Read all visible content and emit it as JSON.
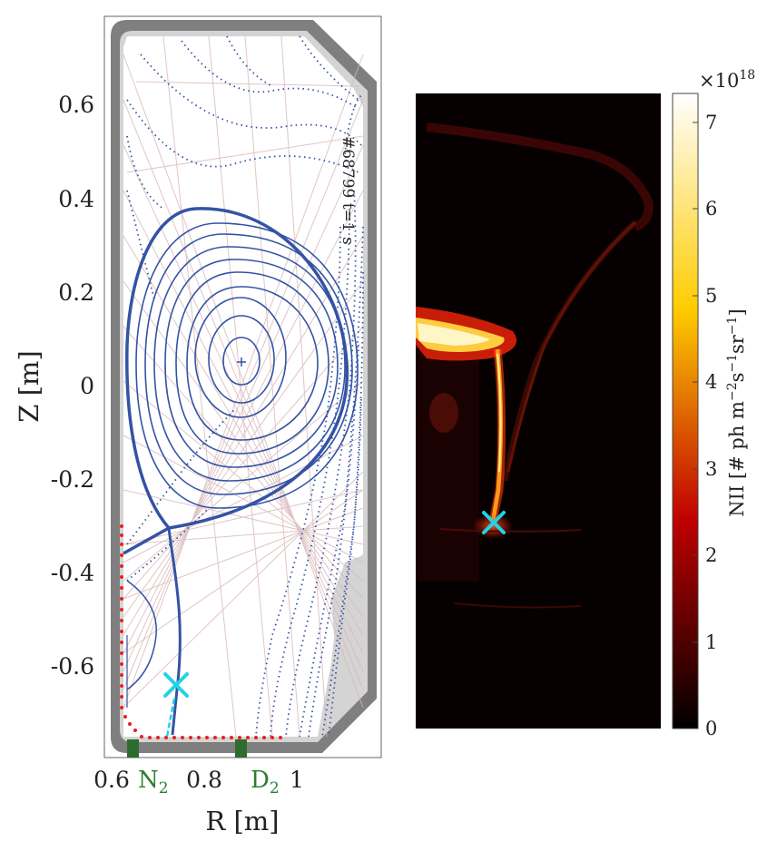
{
  "left_plot": {
    "y_ticks": [
      "0.6",
      "0.4",
      "0.2",
      "0",
      "-0.2",
      "-0.4",
      "-0.6"
    ],
    "x_ticks": [
      "0.6",
      "0.8",
      "1"
    ],
    "x_label": "R [m]",
    "y_label": "Z [m]",
    "shot_label": "#68799 t=1 s",
    "gas_labels": [
      {
        "main": "N",
        "sub": "2"
      },
      {
        "main": "D",
        "sub": "2"
      }
    ]
  },
  "camera_image": {
    "colorbar": {
      "exponent_base": "×10",
      "exponent_power": "18",
      "label": "NII [# ph m",
      "label_sup1": "−2",
      "label_mid": "s",
      "label_sup2": "−1",
      "label_mid2": "sr",
      "label_sup3": "−1",
      "label_end": "]",
      "ticks": [
        "0",
        "1",
        "2",
        "3",
        "4",
        "5",
        "6",
        "7"
      ]
    }
  },
  "colors": {
    "flux_surface": "#3453a4",
    "x_point_marker": "#22d3e6",
    "gas_valve": "#2e6b2e",
    "wall": "#808080",
    "tiles": "#d0d0d0",
    "sensor_dots": "#e8201c"
  }
}
